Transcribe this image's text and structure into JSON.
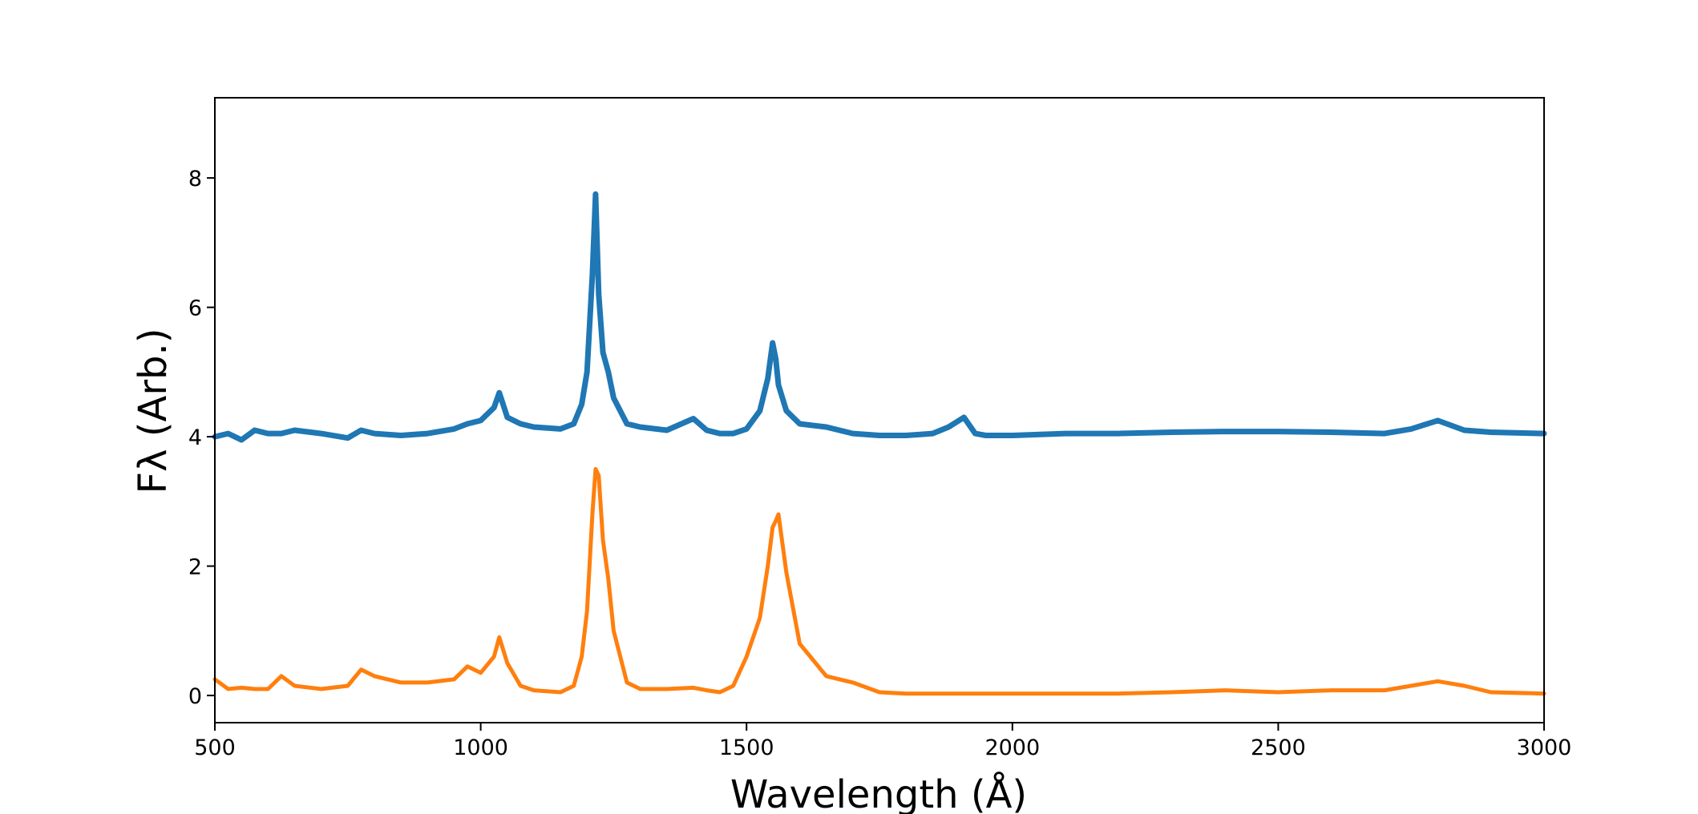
{
  "chart_data": {
    "type": "line",
    "xlabel": "Wavelength (Å)",
    "ylabel": "Fλ (Arb.)",
    "x": [
      500,
      525,
      550,
      575,
      600,
      625,
      650,
      700,
      750,
      775,
      800,
      850,
      900,
      950,
      975,
      1000,
      1025,
      1035,
      1050,
      1075,
      1100,
      1150,
      1175,
      1190,
      1200,
      1210,
      1216,
      1222,
      1230,
      1240,
      1250,
      1275,
      1300,
      1350,
      1400,
      1425,
      1450,
      1475,
      1500,
      1525,
      1540,
      1549,
      1555,
      1560,
      1575,
      1600,
      1650,
      1700,
      1750,
      1800,
      1850,
      1880,
      1909,
      1930,
      1950,
      2000,
      2100,
      2200,
      2300,
      2400,
      2500,
      2600,
      2700,
      2750,
      2800,
      2850,
      2900,
      3000
    ],
    "series": [
      {
        "color": "#1f77b4",
        "linewidth": 7,
        "values": [
          4.0,
          4.05,
          3.95,
          4.1,
          4.05,
          4.05,
          4.1,
          4.05,
          3.98,
          4.1,
          4.05,
          4.02,
          4.05,
          4.12,
          4.2,
          4.25,
          4.45,
          4.68,
          4.3,
          4.2,
          4.15,
          4.12,
          4.2,
          4.5,
          5.0,
          6.5,
          7.75,
          6.2,
          5.3,
          5.0,
          4.6,
          4.2,
          4.15,
          4.1,
          4.28,
          4.1,
          4.05,
          4.05,
          4.12,
          4.4,
          4.9,
          5.45,
          5.2,
          4.8,
          4.4,
          4.2,
          4.15,
          4.05,
          4.02,
          4.02,
          4.05,
          4.15,
          4.3,
          4.05,
          4.02,
          4.02,
          4.05,
          4.05,
          4.07,
          4.08,
          4.08,
          4.07,
          4.05,
          4.12,
          4.25,
          4.1,
          4.07,
          4.05
        ]
      },
      {
        "color": "#ff7f0e",
        "linewidth": 5,
        "values": [
          0.25,
          0.1,
          0.12,
          0.1,
          0.1,
          0.3,
          0.15,
          0.1,
          0.15,
          0.4,
          0.3,
          0.2,
          0.2,
          0.25,
          0.45,
          0.35,
          0.6,
          0.9,
          0.5,
          0.15,
          0.08,
          0.05,
          0.15,
          0.6,
          1.3,
          2.8,
          3.5,
          3.4,
          2.4,
          1.8,
          1.0,
          0.2,
          0.1,
          0.1,
          0.12,
          0.08,
          0.05,
          0.15,
          0.6,
          1.2,
          2.0,
          2.6,
          2.7,
          2.8,
          1.9,
          0.8,
          0.3,
          0.2,
          0.05,
          0.03,
          0.03,
          0.03,
          0.03,
          0.03,
          0.03,
          0.03,
          0.03,
          0.03,
          0.05,
          0.08,
          0.05,
          0.08,
          0.08,
          0.15,
          0.22,
          0.15,
          0.05,
          0.03
        ]
      }
    ],
    "xlim": [
      500,
      3000
    ],
    "xticks": [
      500,
      1000,
      1500,
      2000,
      2500,
      3000
    ],
    "ylim": [
      -0.42,
      9.24
    ],
    "yticks": [
      0,
      2,
      4,
      6,
      8
    ]
  }
}
